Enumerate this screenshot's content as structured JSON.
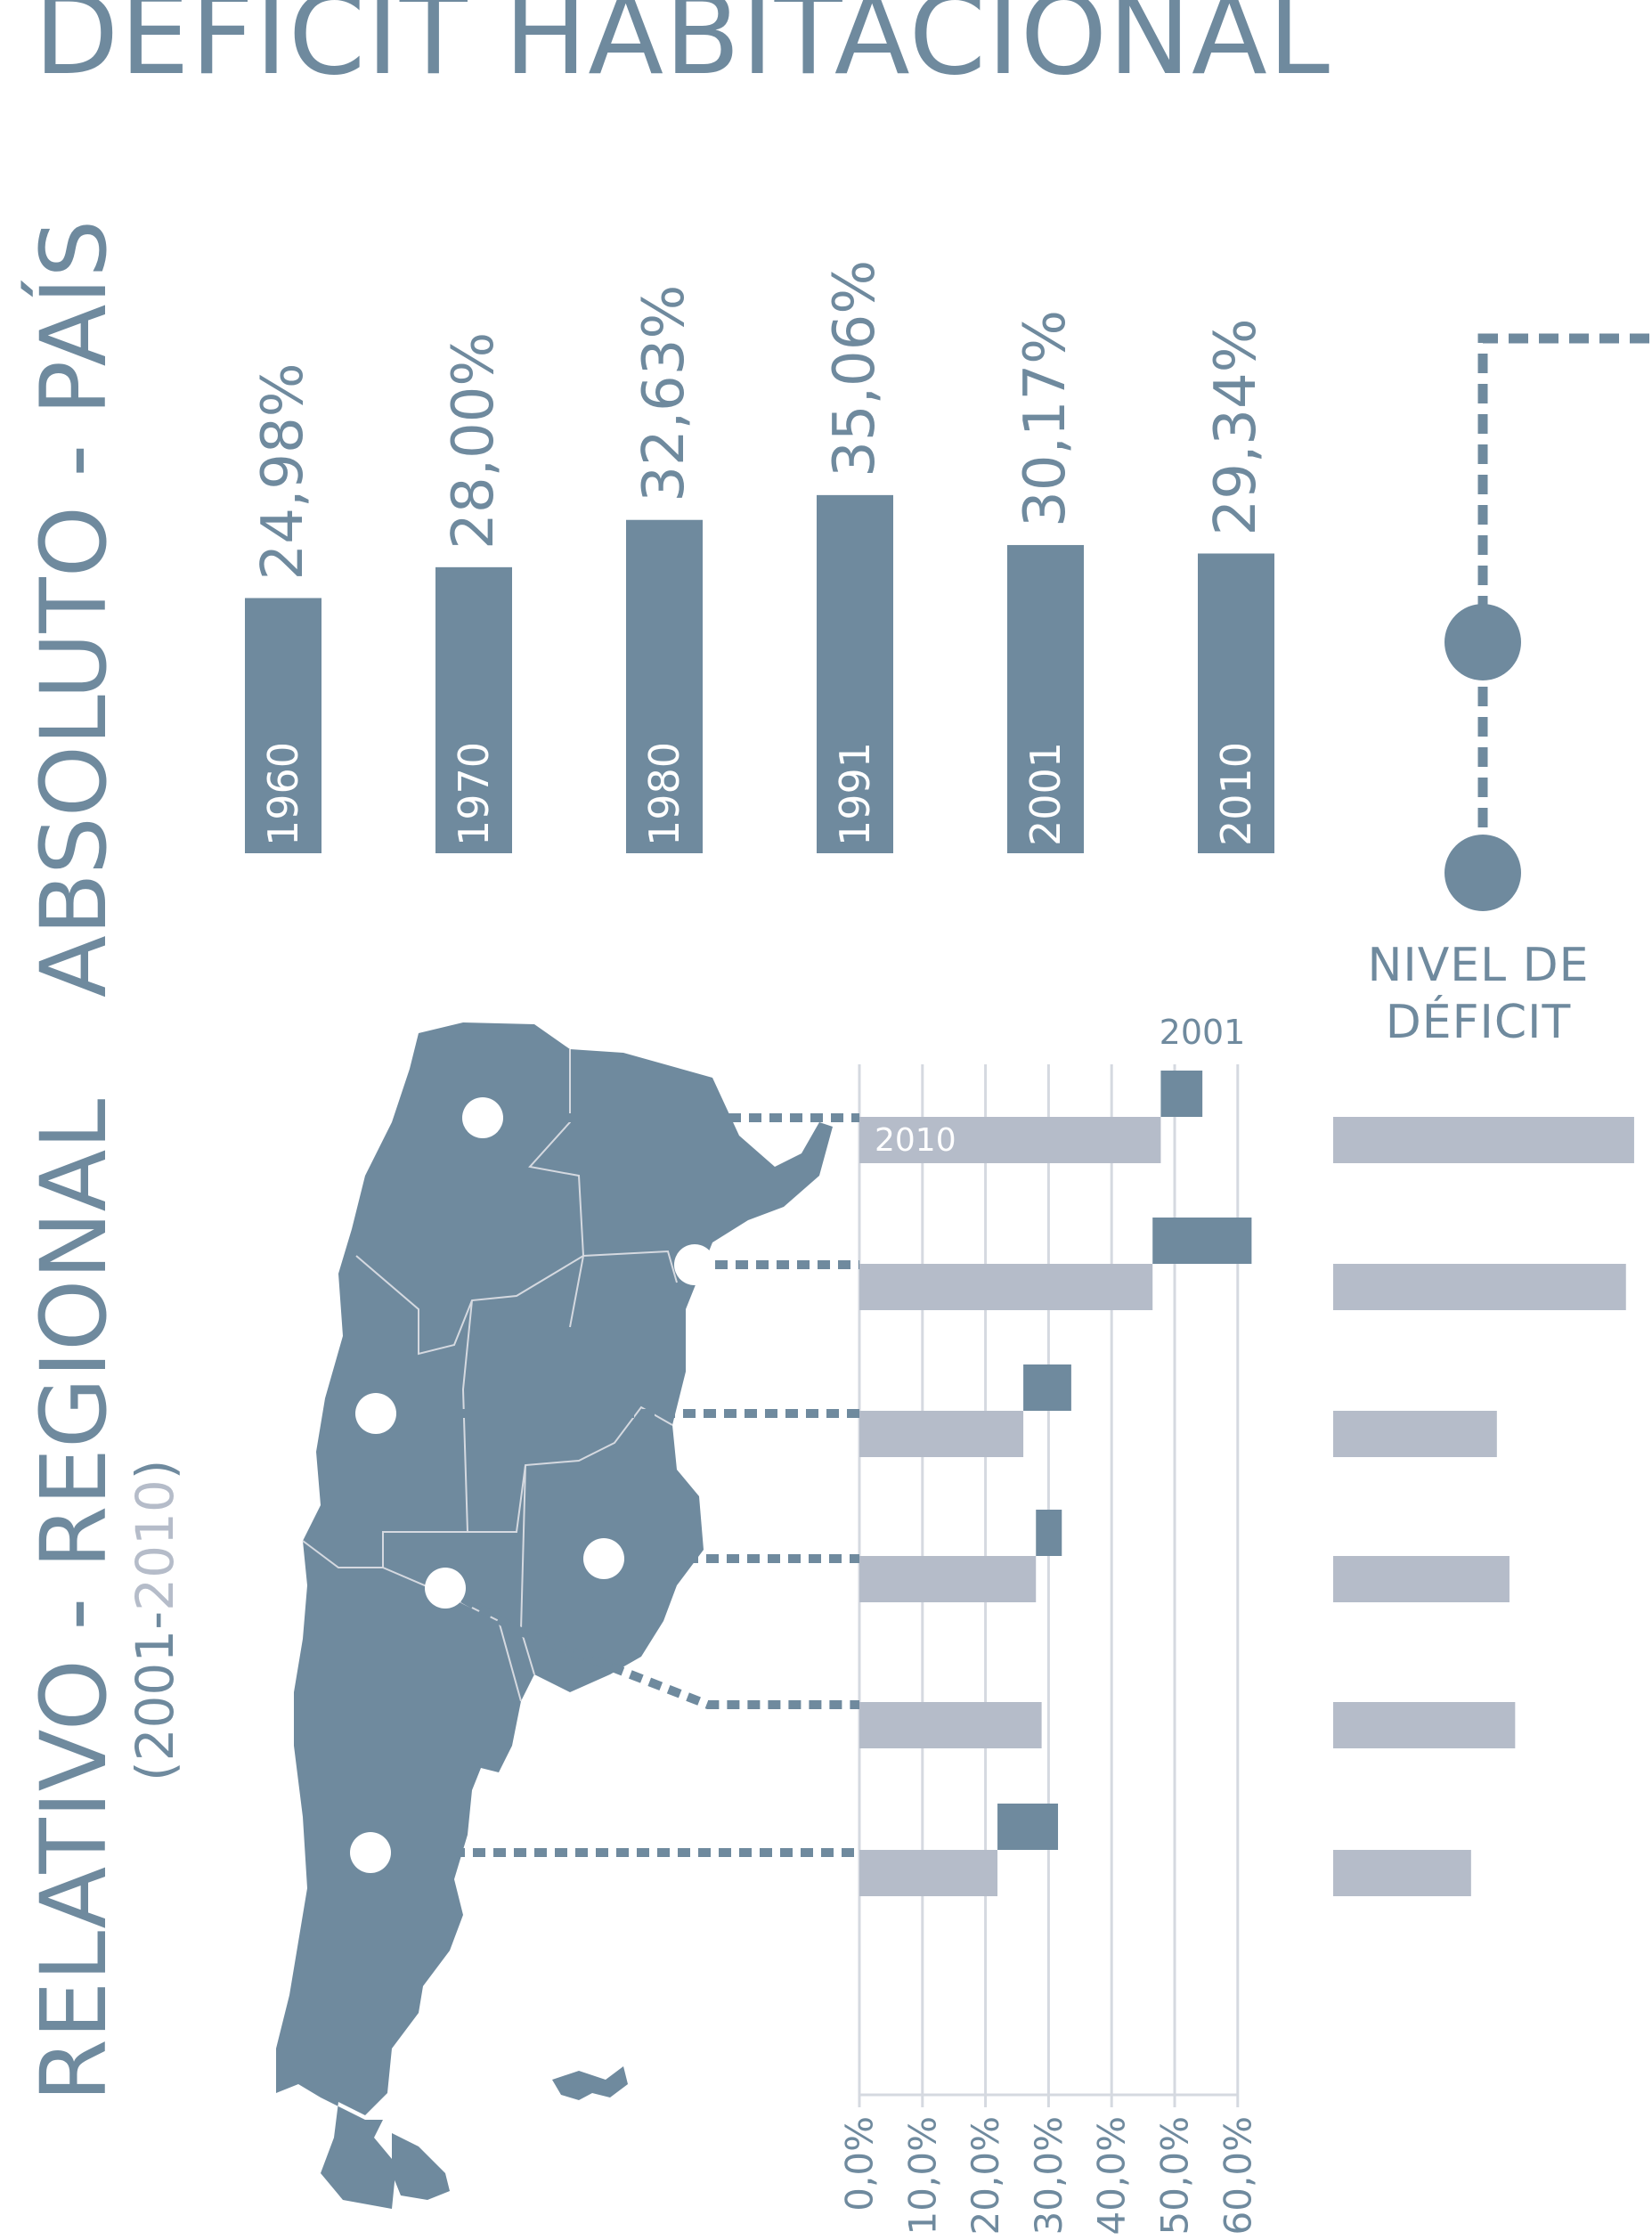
{
  "title": "DÉFICIT HABITACIONAL",
  "section_absolute": {
    "label": "ABSOLUTO - PAÍS"
  },
  "section_relative": {
    "label": "RELATIVO - REGIONAL",
    "sub_prefix": "(2001-",
    "sub_year": "2010",
    "sub_suffix": ")"
  },
  "legend": {
    "level_line1": "NIVEL DE",
    "level_line2": "DÉFICIT"
  },
  "colors": {
    "primary": "#6f8a9e",
    "light": "#b5bcc9",
    "grid": "#d5d9e0",
    "white": "#ffffff"
  },
  "chart_data": [
    {
      "type": "bar",
      "categories": [
        "1960",
        "1970",
        "1980",
        "1991",
        "2001",
        "2010"
      ],
      "values": [
        24.98,
        28.0,
        32.63,
        35.06,
        30.17,
        29.34
      ],
      "labels": [
        "24,98%",
        "28,00%",
        "32,63%",
        "35,06%",
        "30,17%",
        "29,34%"
      ]
    },
    {
      "type": "bar",
      "series": [
        {
          "name": "2001",
          "values": [
            54.4,
            62.2,
            33.6,
            32.1,
            null,
            31.5
          ]
        },
        {
          "name": "2010",
          "values": [
            47.8,
            46.5,
            26.0,
            28.0,
            28.9,
            21.9
          ]
        }
      ],
      "level_values": [
        47.8,
        46.5,
        26.0,
        28.0,
        28.9,
        21.9
      ],
      "xlim": [
        0,
        60
      ],
      "xticks": [
        "0,0%",
        "10,0%",
        "20,0%",
        "30,0%",
        "40,0%",
        "50,0%",
        "60,0%"
      ],
      "grid": true
    }
  ]
}
